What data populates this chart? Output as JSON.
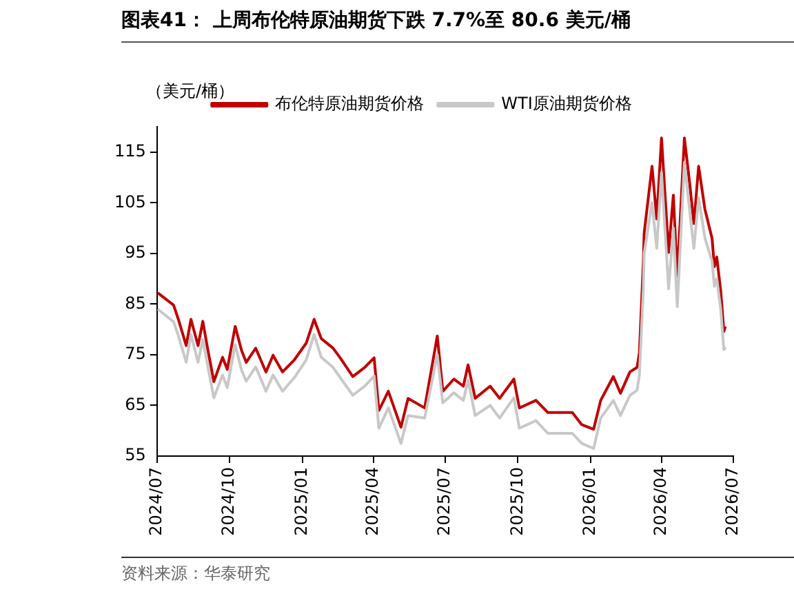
{
  "chart_data": {
    "type": "line",
    "title": "图表41：  上周布伦特原油期货下跌 7.7%至 80.6 美元/桶",
    "ylabel": "（美元/桶）",
    "annotations": [
      "资料来源：华泰研究"
    ],
    "x": [
      "2024-07-02",
      "2024-07-22",
      "2024-07-28",
      "2024-08-07",
      "2024-08-13",
      "2024-08-22",
      "2024-08-28",
      "2024-09-03",
      "2024-09-11",
      "2024-09-22",
      "2024-09-28",
      "2024-10-08",
      "2024-10-16",
      "2024-10-22",
      "2024-11-03",
      "2024-11-16",
      "2024-11-25",
      "2024-12-07",
      "2024-12-22",
      "2025-01-06",
      "2025-01-16",
      "2025-01-25",
      "2025-02-09",
      "2025-02-18",
      "2025-03-06",
      "2025-03-21",
      "2025-04-02",
      "2025-04-08",
      "2025-04-20",
      "2025-05-06",
      "2025-05-15",
      "2025-06-05",
      "2025-06-21",
      "2025-06-28",
      "2025-07-12",
      "2025-07-24",
      "2025-07-30",
      "2025-08-08",
      "2025-08-27",
      "2025-09-08",
      "2025-09-26",
      "2025-10-03",
      "2025-10-24",
      "2025-11-08",
      "2025-12-09",
      "2025-12-21",
      "2026-01-05",
      "2026-01-14",
      "2026-01-30",
      "2026-02-08",
      "2026-02-20",
      "2026-03-01",
      "2026-03-04",
      "2026-03-09",
      "2026-03-10",
      "2026-03-20",
      "2026-03-26",
      "2026-04-01",
      "2026-04-10",
      "2026-04-16",
      "2026-04-21",
      "2026-04-30",
      "2026-05-07",
      "2026-05-12",
      "2026-05-18",
      "2026-05-26",
      "2026-06-04",
      "2026-06-07",
      "2026-06-10",
      "2026-06-15",
      "2026-06-19",
      "2026-06-21"
    ],
    "series": [
      {
        "name": "布伦特原油期货价格",
        "color": "#c00000",
        "values": [
          87.2,
          84.8,
          82.0,
          76.8,
          82.0,
          76.8,
          81.6,
          76.3,
          69.7,
          74.5,
          72.1,
          80.6,
          75.9,
          73.5,
          76.3,
          71.6,
          74.9,
          71.6,
          74.0,
          77.3,
          82.0,
          78.2,
          76.3,
          74.4,
          70.7,
          72.5,
          74.4,
          64.0,
          67.8,
          60.7,
          66.4,
          64.5,
          78.7,
          67.8,
          70.2,
          68.8,
          73.0,
          66.4,
          68.8,
          66.4,
          70.2,
          64.5,
          66.0,
          63.6,
          63.6,
          61.2,
          60.3,
          66.0,
          70.7,
          67.4,
          71.6,
          72.5,
          75.4,
          93.3,
          99.0,
          112.2,
          101.8,
          117.8,
          95.2,
          106.5,
          90.5,
          117.8,
          108.4,
          100.9,
          112.2,
          103.7,
          98.0,
          92.4,
          94.3,
          87.6,
          79.6,
          80.6
        ]
      },
      {
        "name": "WTI原油期货价格",
        "color": "#c8c8c8",
        "values": [
          84.0,
          81.5,
          78.8,
          73.5,
          79.0,
          73.5,
          78.0,
          73.0,
          66.5,
          71.0,
          68.5,
          77.0,
          72.0,
          69.8,
          72.6,
          67.8,
          71.0,
          67.8,
          70.5,
          74.0,
          79.0,
          74.5,
          72.5,
          70.5,
          67.0,
          68.8,
          70.8,
          60.5,
          64.5,
          57.5,
          63.0,
          62.5,
          75.0,
          65.5,
          67.5,
          66.0,
          70.0,
          63.0,
          65.0,
          62.5,
          66.5,
          60.5,
          62.0,
          59.5,
          59.5,
          57.5,
          56.5,
          62.5,
          66.0,
          63.0,
          67.0,
          68.0,
          71.0,
          88.0,
          95.0,
          105.0,
          96.0,
          111.0,
          88.0,
          100.0,
          84.5,
          113.0,
          103.0,
          96.0,
          106.0,
          98.0,
          93.5,
          88.5,
          90.0,
          84.0,
          76.0,
          76.5
        ]
      }
    ],
    "xlim": [
      "2024-07-01",
      "2026-07-01"
    ],
    "xticks": [
      {
        "value": "2024-07-01",
        "label": "2024/07"
      },
      {
        "value": "2024-10-01",
        "label": "2024/10"
      },
      {
        "value": "2025-01-01",
        "label": "2025/01"
      },
      {
        "value": "2025-04-01",
        "label": "2025/04"
      },
      {
        "value": "2025-07-01",
        "label": "2025/07"
      },
      {
        "value": "2025-10-01",
        "label": "2025/10"
      },
      {
        "value": "2026-01-01",
        "label": "2026/01"
      },
      {
        "value": "2026-04-01",
        "label": "2026/04"
      },
      {
        "value": "2026-07-01",
        "label": "2026/07"
      }
    ],
    "ylim": [
      55,
      120
    ],
    "yticks": [
      55,
      65,
      75,
      85,
      95,
      105,
      115
    ],
    "legend": "top",
    "grid": false,
    "marker": "none",
    "line_style": "solid"
  }
}
